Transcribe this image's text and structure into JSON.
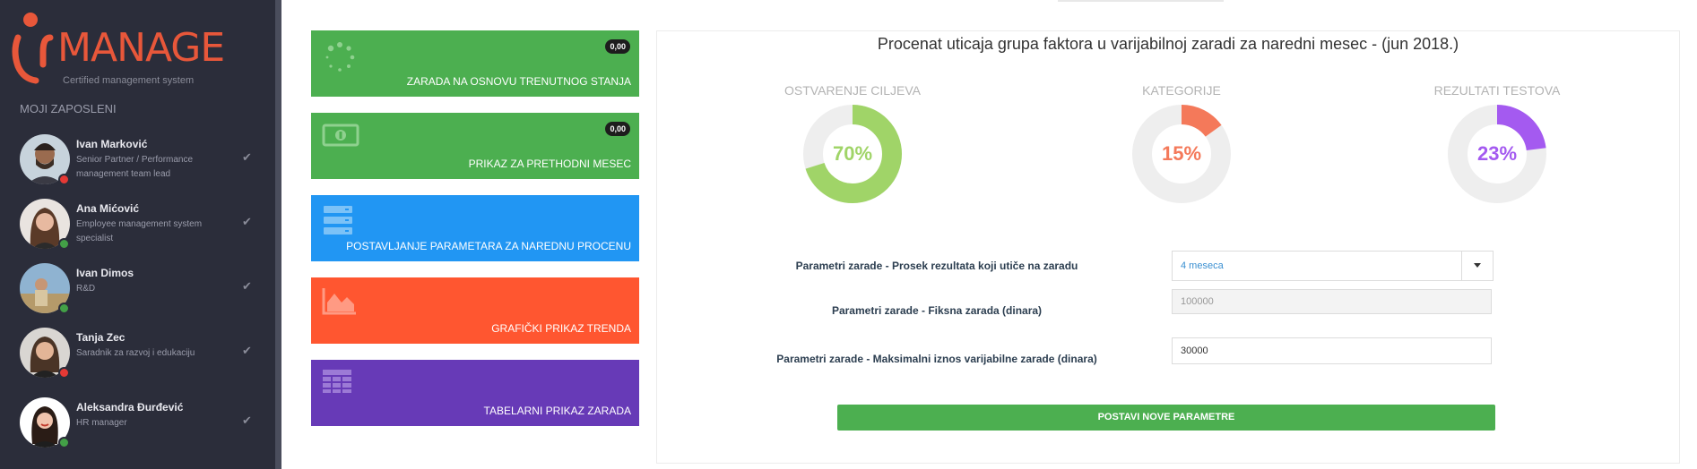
{
  "sidebar": {
    "logo_text": "MANAGE",
    "logo_tagline": "Certified management system",
    "section_label": "MOJI ZAPOSLENI",
    "employees": [
      {
        "name": "Ivan Marković",
        "role": "Senior Partner / Performance management team lead",
        "status_color": "#e53935"
      },
      {
        "name": "Ana Mićović",
        "role": "Employee management system specialist",
        "status_color": "#43a047"
      },
      {
        "name": "Ivan Dimos",
        "role": "R&D",
        "status_color": "#43a047"
      },
      {
        "name": "Tanja Zec",
        "role": "Saradnik za razvoj i edukaciju",
        "status_color": "#e53935"
      },
      {
        "name": "Aleksandra Đurđević",
        "role": "HR manager",
        "status_color": "#43a047"
      }
    ]
  },
  "tiles": [
    {
      "label": "ZARADA NA OSNOVU TRENUTNOG STANJA",
      "badge": "0,00",
      "color": "#4caf50",
      "icon": "spinner-icon"
    },
    {
      "label": "PRIKAZ ZA PRETHODNI MESEC",
      "badge": "0,00",
      "color": "#4caf50",
      "icon": "money-icon"
    },
    {
      "label": "POSTAVLJANJE PARAMETARA ZA NAREDNU PROCENU",
      "badge": "",
      "color": "#2196f3",
      "icon": "server-icon"
    },
    {
      "label": "GRAFIČKI PRIKAZ TRENDA",
      "badge": "",
      "color": "#ff5630",
      "icon": "area-chart-icon"
    },
    {
      "label": "TABELARNI PRIKAZ ZARADA",
      "badge": "",
      "color": "#673ab7",
      "icon": "table-icon"
    }
  ],
  "panel": {
    "title": "Procenat uticaja grupa faktora u varijabilnoj zaradi za naredni mesec - (jun 2018.)",
    "donuts": [
      {
        "label": "OSTVARENJE CILJEVA",
        "percent": 70,
        "text": "70%",
        "color": "#a0d468"
      },
      {
        "label": "KATEGORIJE",
        "percent": 15,
        "text": "15%",
        "color": "#f4795a"
      },
      {
        "label": "REZULTATI TESTOVA",
        "percent": 23,
        "text": "23%",
        "color": "#a45af0"
      }
    ],
    "form": {
      "avg_label": "Parametri zarade - Prosek rezultata koji utiče na zaradu",
      "avg_value": "4 meseca",
      "fixed_label": "Parametri zarade - Fiksna zarada (dinara)",
      "fixed_value": "100000",
      "max_label": "Parametri zarade - Maksimalni iznos varijabilne zarade (dinara)",
      "max_value": "30000",
      "submit_label": "POSTAVI NOVE PARAMETRE"
    }
  }
}
